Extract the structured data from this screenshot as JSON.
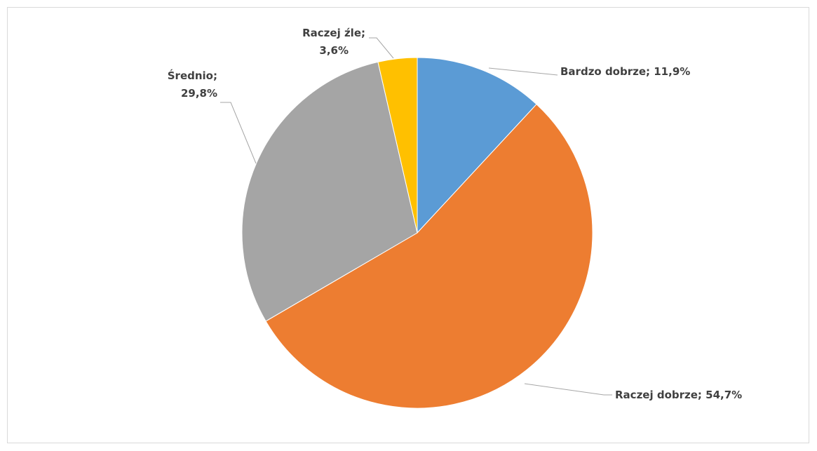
{
  "chart_data": {
    "type": "pie",
    "title": "",
    "legend": "none",
    "start_angle_deg": 0,
    "direction": "clockwise",
    "slices": [
      {
        "label": "Bardzo dobrze",
        "value": 11.9,
        "value_text": "11,9%",
        "color": "#5b9bd5"
      },
      {
        "label": "Raczej dobrze",
        "value": 54.7,
        "value_text": "54,7%",
        "color": "#ed7d31"
      },
      {
        "label": "Średnio",
        "value": 29.8,
        "value_text": "29,8%",
        "color": "#a5a5a5"
      },
      {
        "label": "Raczej źle",
        "value": 3.6,
        "value_text": "3,6%",
        "color": "#ffc000"
      }
    ]
  }
}
